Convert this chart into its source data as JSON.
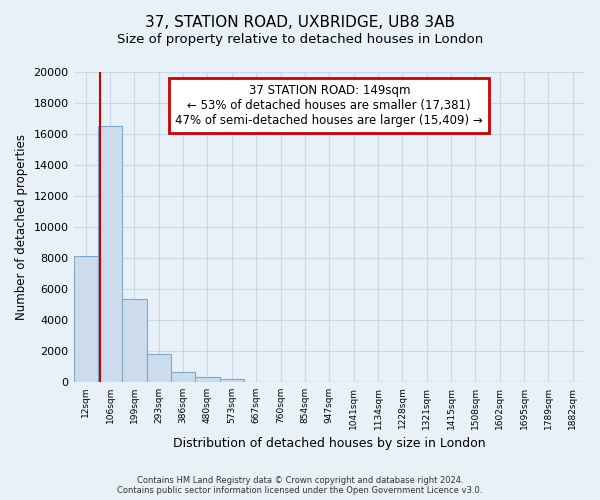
{
  "title1": "37, STATION ROAD, UXBRIDGE, UB8 3AB",
  "title2": "Size of property relative to detached houses in London",
  "xlabel": "Distribution of detached houses by size in London",
  "ylabel": "Number of detached properties",
  "bar_labels": [
    "12sqm",
    "106sqm",
    "199sqm",
    "293sqm",
    "386sqm",
    "480sqm",
    "573sqm",
    "667sqm",
    "760sqm",
    "854sqm",
    "947sqm",
    "1041sqm",
    "1134sqm",
    "1228sqm",
    "1321sqm",
    "1415sqm",
    "1508sqm",
    "1602sqm",
    "1695sqm",
    "1789sqm",
    "1882sqm"
  ],
  "bar_values": [
    8100,
    16500,
    5300,
    1800,
    650,
    300,
    200,
    0,
    0,
    0,
    0,
    0,
    0,
    0,
    0,
    0,
    0,
    0,
    0,
    0,
    0
  ],
  "bar_color": "#ccdcec",
  "bar_edge_color": "#7aaac8",
  "ylim": [
    0,
    20000
  ],
  "yticks": [
    0,
    2000,
    4000,
    6000,
    8000,
    10000,
    12000,
    14000,
    16000,
    18000,
    20000
  ],
  "property_label": "37 STATION ROAD: 149sqm",
  "annotation_line1": "← 53% of detached houses are smaller (17,381)",
  "annotation_line2": "47% of semi-detached houses are larger (15,409) →",
  "annotation_box_color": "#ffffff",
  "annotation_border_color": "#cc0000",
  "line_color": "#cc0000",
  "footer_line1": "Contains HM Land Registry data © Crown copyright and database right 2024.",
  "footer_line2": "Contains public sector information licensed under the Open Government Licence v3.0.",
  "background_color": "#e8f0f8",
  "grid_color": "#c8d8e8",
  "title_fontsize": 11,
  "subtitle_fontsize": 9.5
}
